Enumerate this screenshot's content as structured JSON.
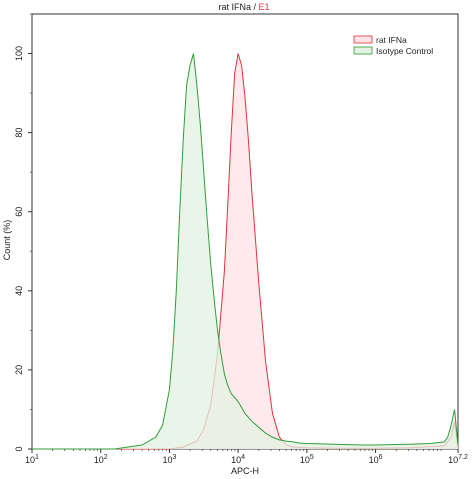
{
  "chart_data": {
    "type": "area",
    "title_main": "rat IFNa",
    "title_sep": " / ",
    "title_gate": "E1",
    "xlabel": "APC-H",
    "ylabel": "Count (%)",
    "x_scale": "log10",
    "xlim": [
      1,
      7.2
    ],
    "ylim": [
      0,
      110
    ],
    "x_ticks": [
      {
        "base": "10",
        "exp": "1",
        "value": 1
      },
      {
        "base": "10",
        "exp": "2",
        "value": 2
      },
      {
        "base": "10",
        "exp": "3",
        "value": 3
      },
      {
        "base": "10",
        "exp": "4",
        "value": 4
      },
      {
        "base": "10",
        "exp": "5",
        "value": 5
      },
      {
        "base": "10",
        "exp": "6",
        "value": 6
      },
      {
        "base": "10",
        "exp": "7.2",
        "value": 7.2
      }
    ],
    "y_ticks": [
      "0",
      "20",
      "40",
      "60",
      "80",
      "100"
    ],
    "legend_position": "top-right",
    "series": [
      {
        "name": "rat IFNa",
        "stroke": "#e0333a",
        "fill": "#fde3e6",
        "x": [
          1.0,
          3.0,
          3.2,
          3.4,
          3.5,
          3.6,
          3.7,
          3.8,
          3.85,
          3.9,
          3.95,
          4.0,
          4.05,
          4.1,
          4.15,
          4.2,
          4.3,
          4.4,
          4.5,
          4.6,
          4.7,
          4.8,
          5.0,
          5.5,
          6.0,
          6.5,
          7.0,
          7.1,
          7.15,
          7.2
        ],
        "y": [
          0,
          0,
          0.5,
          2,
          5,
          11,
          24,
          45,
          62,
          80,
          95,
          100,
          97,
          89,
          78,
          65,
          42,
          22,
          9,
          3,
          1,
          0.5,
          0.3,
          0.2,
          0.2,
          0.3,
          0.8,
          3,
          7,
          0.5
        ]
      },
      {
        "name": "Isotype Control",
        "stroke": "#2f9e3a",
        "fill": "#e3f2e1",
        "x": [
          1.0,
          2.2,
          2.4,
          2.6,
          2.8,
          2.9,
          3.0,
          3.05,
          3.1,
          3.15,
          3.2,
          3.25,
          3.3,
          3.35,
          3.4,
          3.45,
          3.5,
          3.55,
          3.6,
          3.65,
          3.7,
          3.75,
          3.8,
          3.85,
          3.9,
          4.0,
          4.1,
          4.2,
          4.3,
          4.4,
          4.5,
          4.6,
          4.7,
          4.8,
          4.9,
          5.0,
          5.2,
          5.4,
          5.6,
          5.8,
          6.0,
          6.2,
          6.5,
          6.8,
          7.0,
          7.05,
          7.1,
          7.15,
          7.2
        ],
        "y": [
          0,
          0,
          0.5,
          1,
          3,
          6,
          15,
          25,
          40,
          60,
          78,
          92,
          97,
          100,
          92,
          82,
          70,
          58,
          47,
          38,
          30,
          24,
          19,
          16,
          14,
          12,
          9,
          7,
          5.5,
          4,
          3,
          2.3,
          2,
          1.8,
          1.5,
          1.4,
          1.3,
          1.2,
          1.1,
          1.0,
          1.0,
          1.1,
          1.2,
          1.4,
          1.8,
          3,
          6,
          10,
          1
        ]
      }
    ]
  }
}
